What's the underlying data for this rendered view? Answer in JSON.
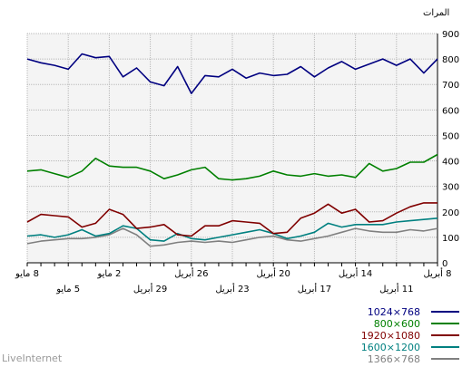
{
  "footer": "LiveInternet",
  "chart_data": {
    "type": "line",
    "ylabel": "المرات",
    "ylim": [
      0,
      900
    ],
    "yticks": [
      0,
      100,
      200,
      300,
      400,
      500,
      600,
      700,
      800,
      900
    ],
    "y_axis_side": "right",
    "grid": true,
    "legend_placement": "bottom-right",
    "x": [
      "8 أبريل",
      "9 أبريل",
      "10 أبريل",
      "11 أبريل",
      "12 أبريل",
      "13 أبريل",
      "14 أبريل",
      "15 أبريل",
      "16 أبريل",
      "17 أبريل",
      "18 أبريل",
      "19 أبريل",
      "20 أبريل",
      "21 أبريل",
      "22 أبريل",
      "23 أبريل",
      "24 أبريل",
      "25 أبريل",
      "26 أبريل",
      "27 أبريل",
      "28 أبريل",
      "29 أبريل",
      "30 أبريل",
      "1 مايو",
      "2 مايو",
      "3 مايو",
      "4 مايو",
      "5 مايو",
      "6 مايو",
      "7 مايو",
      "8 مايو"
    ],
    "x_tick_labels_row1": [
      "8 أبريل",
      "14 أبريل",
      "20 أبريل",
      "26 أبريل",
      "2 مايو",
      "8 مايو"
    ],
    "x_tick_labels_row2": [
      "11 أبريل",
      "17 أبريل",
      "23 أبريل",
      "29 أبريل",
      "5 مايو"
    ],
    "series": [
      {
        "name": "1024×768",
        "color": "#000080",
        "values": [
          800,
          745,
          800,
          775,
          800,
          780,
          760,
          790,
          765,
          730,
          770,
          740,
          735,
          745,
          725,
          760,
          730,
          735,
          665,
          770,
          695,
          710,
          765,
          730,
          810,
          805,
          820,
          760,
          775,
          785,
          800
        ]
      },
      {
        "name": "800×600",
        "color": "#008000",
        "values": [
          425,
          395,
          395,
          370,
          360,
          390,
          335,
          345,
          340,
          350,
          340,
          345,
          360,
          340,
          330,
          325,
          330,
          375,
          365,
          345,
          330,
          360,
          375,
          375,
          380,
          410,
          360,
          335,
          350,
          365,
          360
        ]
      },
      {
        "name": "1920×1080",
        "color": "#800000",
        "values": [
          235,
          235,
          220,
          195,
          165,
          160,
          210,
          195,
          230,
          195,
          175,
          120,
          115,
          155,
          160,
          165,
          145,
          145,
          105,
          110,
          150,
          140,
          135,
          190,
          210,
          155,
          140,
          180,
          185,
          190,
          160
        ]
      },
      {
        "name": "1600×1200",
        "color": "#008080",
        "values": [
          175,
          170,
          165,
          160,
          150,
          150,
          150,
          140,
          155,
          120,
          105,
          95,
          115,
          130,
          120,
          110,
          100,
          90,
          95,
          115,
          85,
          90,
          135,
          145,
          115,
          105,
          130,
          110,
          100,
          110,
          105
        ]
      },
      {
        "name": "1366×768",
        "color": "#808080",
        "values": [
          135,
          125,
          130,
          120,
          120,
          125,
          135,
          120,
          105,
          95,
          85,
          90,
          105,
          100,
          90,
          80,
          85,
          80,
          85,
          80,
          70,
          65,
          110,
          135,
          110,
          100,
          95,
          95,
          90,
          85,
          75
        ]
      }
    ]
  }
}
